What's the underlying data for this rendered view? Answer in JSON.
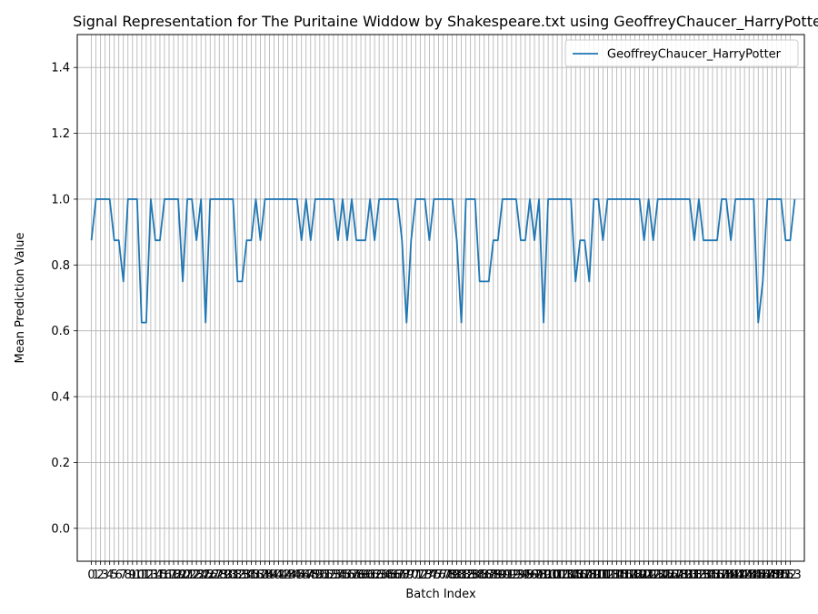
{
  "chart_data": {
    "type": "line",
    "title": "Signal Representation for The Puritaine Widdow by Shakespeare.txt using GeoffreyChaucer_HarryPotte",
    "xlabel": "Batch Index",
    "ylabel": "Mean Prediction Value",
    "xlim": [
      -3.1,
      156.1
    ],
    "ylim": [
      -0.1,
      1.5
    ],
    "grid": true,
    "legend_placement": "top-right",
    "y_ticks": [
      0.0,
      0.2,
      0.4,
      0.6,
      0.8,
      1.0,
      1.2,
      1.4
    ],
    "y_tick_labels": [
      "0.0",
      "0.2",
      "0.4",
      "0.6",
      "0.8",
      "1.0",
      "1.2",
      "1.4"
    ],
    "x_tick_labels": [
      "0",
      "1",
      "2",
      "3",
      "4",
      "5",
      "6",
      "7",
      "8",
      "9",
      "10",
      "11",
      "12",
      "13",
      "14",
      "15",
      "16",
      "17",
      "18",
      "19",
      "20",
      "21",
      "22",
      "23",
      "24",
      "25",
      "26",
      "27",
      "28",
      "29",
      "30",
      "31",
      "32",
      "33",
      "34",
      "35",
      "36",
      "37",
      "38",
      "39",
      "40",
      "41",
      "42",
      "43",
      "44",
      "45",
      "46",
      "47",
      "48",
      "49",
      "50",
      "51",
      "52",
      "53",
      "54",
      "55",
      "56",
      "57",
      "58",
      "59",
      "60",
      "61",
      "62",
      "63",
      "64",
      "65",
      "66",
      "67",
      "68",
      "69",
      "70",
      "71",
      "72",
      "73",
      "74",
      "75",
      "76",
      "77",
      "78",
      "79",
      "80",
      "81",
      "82",
      "83",
      "84",
      "85",
      "86",
      "87",
      "88",
      "89",
      "90",
      "91",
      "92",
      "93",
      "94",
      "95",
      "96",
      "97",
      "98",
      "99",
      "100",
      "101",
      "102",
      "103",
      "104",
      "105",
      "106",
      "107",
      "108",
      "109",
      "110",
      "111",
      "112",
      "113",
      "114",
      "115",
      "116",
      "117",
      "118",
      "119",
      "120",
      "121",
      "122",
      "123",
      "124",
      "125",
      "126",
      "127",
      "128",
      "129",
      "130",
      "131",
      "132",
      "133",
      "134",
      "135",
      "136",
      "137",
      "138",
      "139",
      "140",
      "141",
      "142",
      "143",
      "144",
      "145",
      "146",
      "147",
      "148",
      "149",
      "150",
      "151",
      "152",
      "153"
    ],
    "series": [
      {
        "name": "GeoffreyChaucer_HarryPotter",
        "color": "#1f77b4",
        "values": [
          0.875,
          1.0,
          1.0,
          1.0,
          1.0,
          0.875,
          0.875,
          0.75,
          1.0,
          1.0,
          1.0,
          0.625,
          0.625,
          1.0,
          0.875,
          0.875,
          1.0,
          1.0,
          1.0,
          1.0,
          0.75,
          1.0,
          1.0,
          0.875,
          1.0,
          0.625,
          1.0,
          1.0,
          1.0,
          1.0,
          1.0,
          1.0,
          0.75,
          0.75,
          0.875,
          0.875,
          1.0,
          0.875,
          1.0,
          1.0,
          1.0,
          1.0,
          1.0,
          1.0,
          1.0,
          1.0,
          0.875,
          1.0,
          0.875,
          1.0,
          1.0,
          1.0,
          1.0,
          1.0,
          0.875,
          1.0,
          0.875,
          1.0,
          0.875,
          0.875,
          0.875,
          1.0,
          0.875,
          1.0,
          1.0,
          1.0,
          1.0,
          1.0,
          0.875,
          0.625,
          0.875,
          1.0,
          1.0,
          1.0,
          0.875,
          1.0,
          1.0,
          1.0,
          1.0,
          1.0,
          0.875,
          0.625,
          1.0,
          1.0,
          1.0,
          0.75,
          0.75,
          0.75,
          0.875,
          0.875,
          1.0,
          1.0,
          1.0,
          1.0,
          0.875,
          0.875,
          1.0,
          0.875,
          1.0,
          0.625,
          1.0,
          1.0,
          1.0,
          1.0,
          1.0,
          1.0,
          0.75,
          0.875,
          0.875,
          0.75,
          1.0,
          1.0,
          0.875,
          1.0,
          1.0,
          1.0,
          1.0,
          1.0,
          1.0,
          1.0,
          1.0,
          0.875,
          1.0,
          0.875,
          1.0,
          1.0,
          1.0,
          1.0,
          1.0,
          1.0,
          1.0,
          1.0,
          0.875,
          1.0,
          0.875,
          0.875,
          0.875,
          0.875,
          1.0,
          1.0,
          0.875,
          1.0,
          1.0,
          1.0,
          1.0,
          1.0,
          0.625,
          0.75,
          1.0,
          1.0,
          1.0,
          1.0,
          0.875,
          0.875,
          1.0
        ]
      }
    ]
  }
}
